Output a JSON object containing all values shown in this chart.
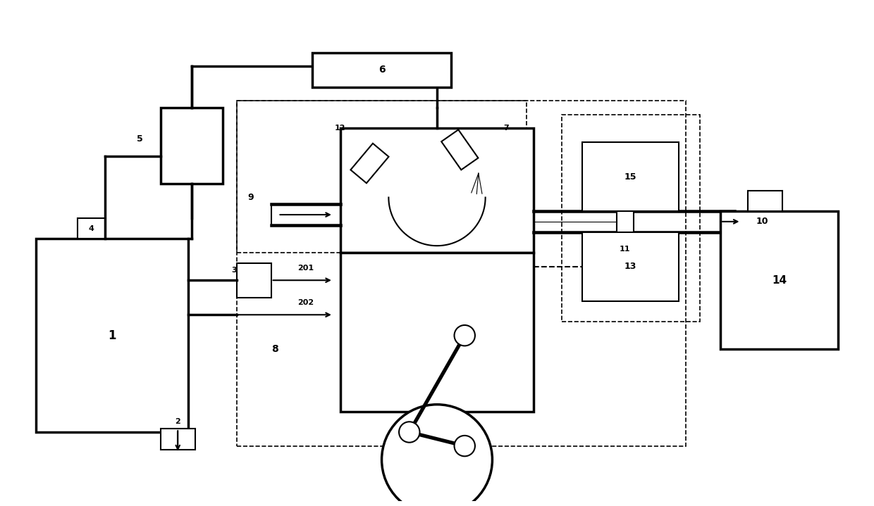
{
  "bg_color": "#ffffff",
  "line_color": "#000000",
  "dashed_color": "#000000",
  "fig_width": 12.4,
  "fig_height": 7.19,
  "dpi": 100
}
